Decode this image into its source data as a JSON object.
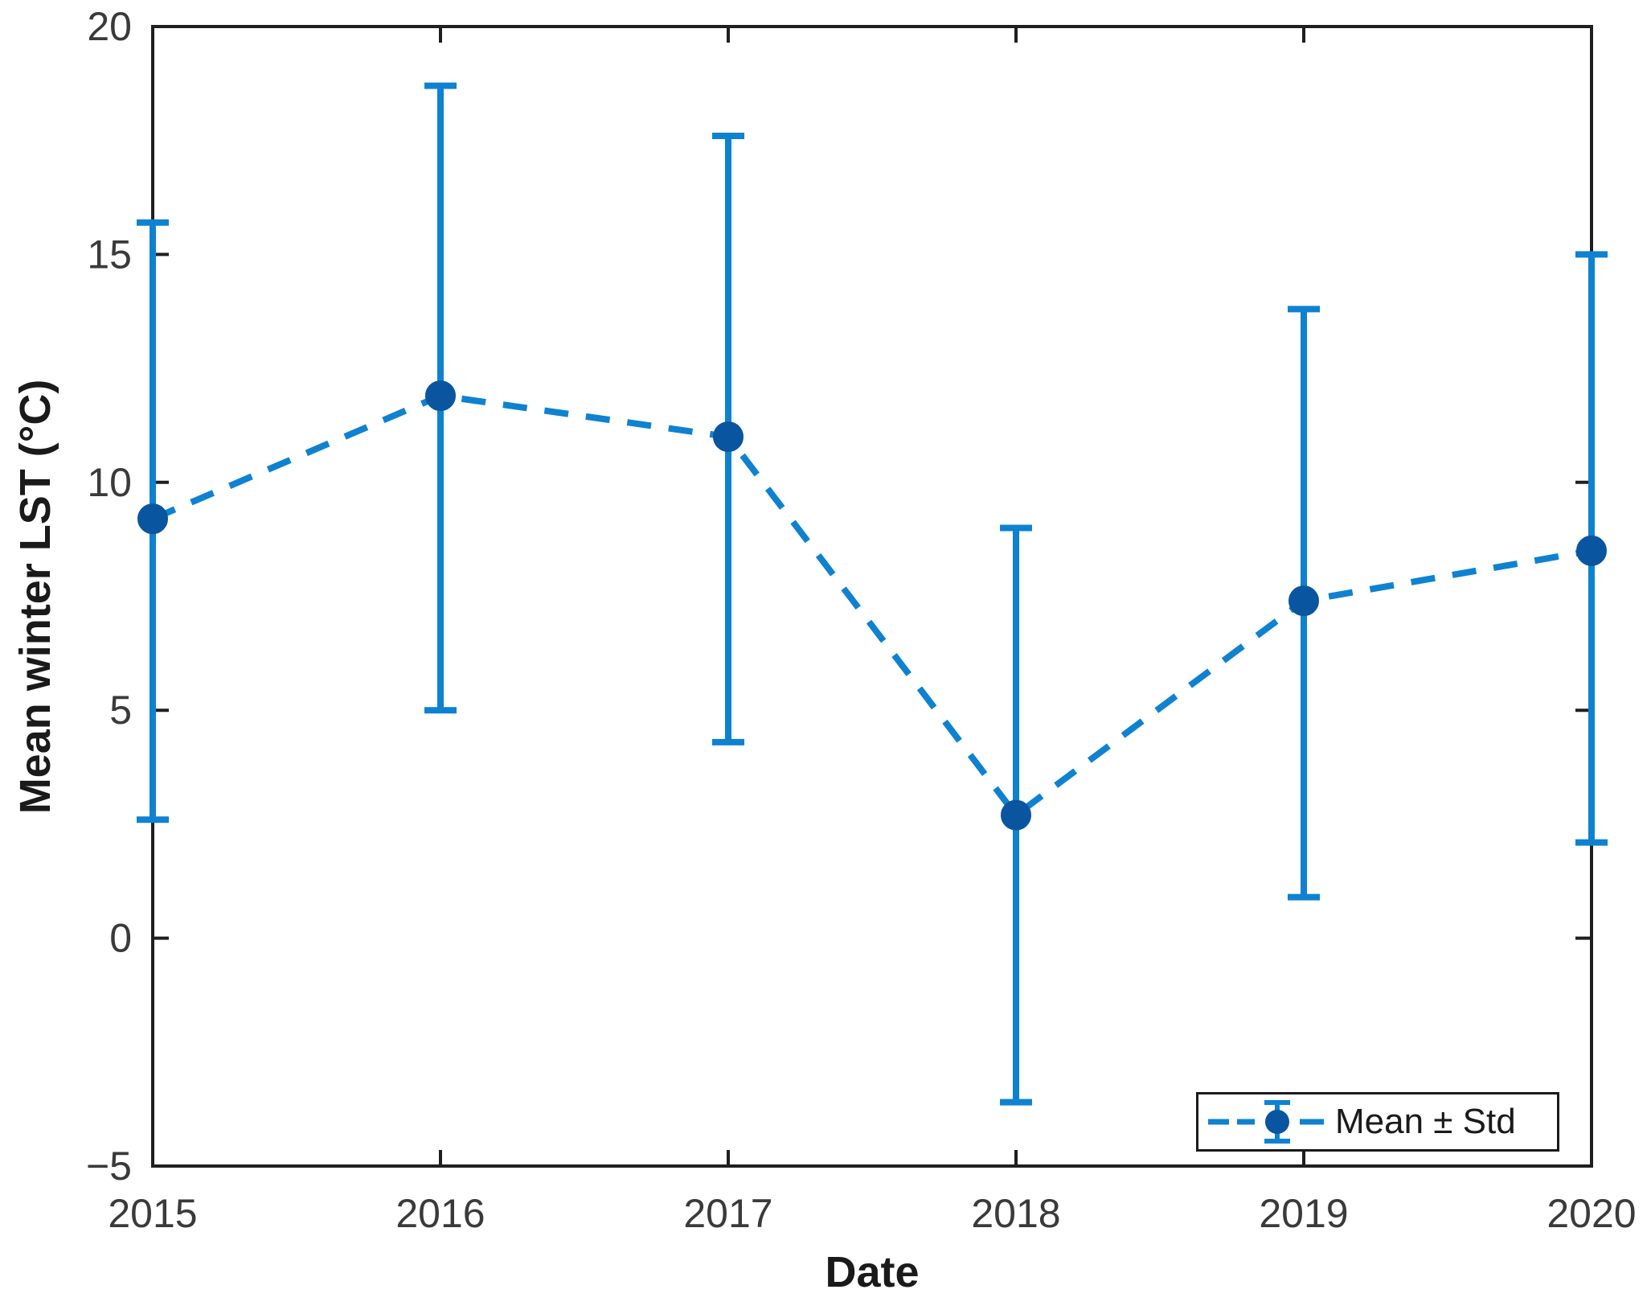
{
  "figure": {
    "background": "#ffffff"
  },
  "chart_data": {
    "type": "line",
    "subtype": "errorbar",
    "title": "",
    "xlabel": "Date",
    "ylabel": "Mean winter LST (°C)",
    "x": [
      2015,
      2016,
      2017,
      2018,
      2019,
      2020
    ],
    "series": [
      {
        "name": "Mean ± Std",
        "values": [
          9.2,
          11.9,
          11.0,
          2.7,
          7.4,
          8.5
        ],
        "error_lower": [
          2.6,
          5.0,
          4.3,
          -3.6,
          0.9,
          2.1
        ],
        "error_upper": [
          15.7,
          18.7,
          17.6,
          9.0,
          13.8,
          15.0
        ],
        "std": [
          6.5,
          6.8,
          6.6,
          6.3,
          6.5,
          6.5
        ]
      }
    ],
    "xlim": [
      2015,
      2020
    ],
    "ylim": [
      -5,
      20
    ],
    "xticks": [
      2015,
      2016,
      2017,
      2018,
      2019,
      2020
    ],
    "yticks": [
      -5,
      0,
      5,
      10,
      15,
      20
    ],
    "grid": false,
    "line_style": "dashed",
    "marker": "filled-circle",
    "legend": {
      "label": "Mean ± Std",
      "position": "bottom-right",
      "border": true
    },
    "colors": {
      "line": "#0e82d0",
      "marker": "#0a55a0",
      "axis": "#1f1f1f",
      "tick_label": "#3a3a3a"
    }
  }
}
